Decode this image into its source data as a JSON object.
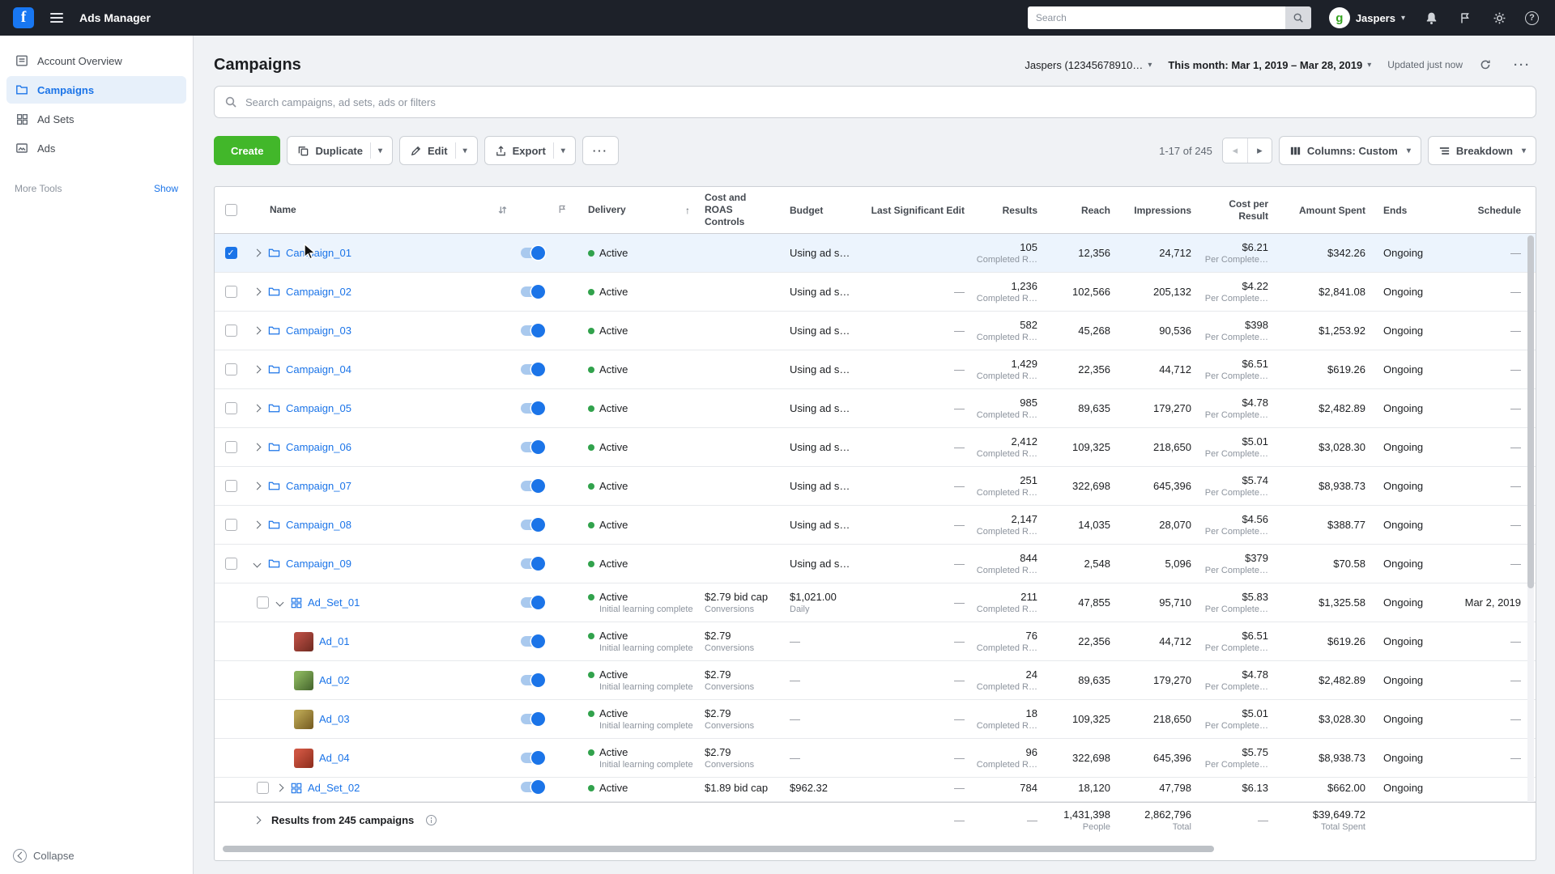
{
  "colors": {
    "accent_blue": "#1b74e8",
    "create_green": "#42b72a",
    "active_green": "#31a24c",
    "selected_row": "#ecf4fd"
  },
  "icons": {
    "caret": "▾",
    "sort_asc": "↑",
    "prev": "◂",
    "next": "▸",
    "more": "···",
    "check": "✓",
    "help": "?"
  },
  "topbar": {
    "logo_glyph": "f",
    "app_title": "Ads Manager",
    "search_placeholder": "Search",
    "avatar_glyph": "g",
    "user_name": "Jaspers"
  },
  "sidebar": {
    "items": [
      {
        "label": "Account Overview"
      },
      {
        "label": "Campaigns"
      },
      {
        "label": "Ad Sets"
      },
      {
        "label": "Ads"
      }
    ],
    "more_tools": "More Tools",
    "show": "Show",
    "collapse": "Collapse"
  },
  "header": {
    "title": "Campaigns",
    "account": "Jaspers (12345678910…",
    "date_range": "This month: Mar 1, 2019 – Mar 28, 2019",
    "updated": "Updated just now"
  },
  "filter": {
    "placeholder": "Search campaigns, ad sets, ads or filters"
  },
  "toolbar": {
    "create": "Create",
    "duplicate": "Duplicate",
    "edit": "Edit",
    "export": "Export",
    "range": "1-17 of 245",
    "columns": "Columns: Custom",
    "breakdown": "Breakdown"
  },
  "table": {
    "columns": {
      "name": "Name",
      "delivery": "Delivery",
      "cost": "Cost and ROAS Controls",
      "budget": "Budget",
      "last_edit": "Last Significant Edit",
      "results": "Results",
      "reach": "Reach",
      "impressions": "Impressions",
      "cpr": "Cost per Result",
      "spent": "Amount Spent",
      "ends": "Ends",
      "schedule": "Schedule"
    },
    "rows": [
      {
        "type": "campaign",
        "level": 0,
        "name": "Campaign_01",
        "expand": "right",
        "checked": true,
        "selected": true,
        "status": "Active",
        "status_sub": "",
        "cost": "",
        "cost_sub": "",
        "budget": "Using ad s…",
        "budget_sub": "",
        "last_edit": "",
        "results": "105",
        "results_sub": "Completed R…",
        "reach": "12,356",
        "impressions": "24,712",
        "cpr": "$6.21",
        "cpr_sub": "Per Complete…",
        "spent": "$342.26",
        "ends": "Ongoing",
        "schedule": "—"
      },
      {
        "type": "campaign",
        "level": 0,
        "name": "Campaign_02",
        "expand": "right",
        "checked": false,
        "status": "Active",
        "status_sub": "",
        "cost": "",
        "cost_sub": "",
        "budget": "Using ad s…",
        "budget_sub": "",
        "last_edit": "—",
        "results": "1,236",
        "results_sub": "Completed R…",
        "reach": "102,566",
        "impressions": "205,132",
        "cpr": "$4.22",
        "cpr_sub": "Per Complete…",
        "spent": "$2,841.08",
        "ends": "Ongoing",
        "schedule": "—"
      },
      {
        "type": "campaign",
        "level": 0,
        "name": "Campaign_03",
        "expand": "right",
        "checked": false,
        "status": "Active",
        "status_sub": "",
        "cost": "",
        "cost_sub": "",
        "budget": "Using ad s…",
        "budget_sub": "",
        "last_edit": "—",
        "results": "582",
        "results_sub": "Completed R…",
        "reach": "45,268",
        "impressions": "90,536",
        "cpr": "$398",
        "cpr_sub": "Per Complete…",
        "spent": "$1,253.92",
        "ends": "Ongoing",
        "schedule": "—"
      },
      {
        "type": "campaign",
        "level": 0,
        "name": "Campaign_04",
        "expand": "right",
        "checked": false,
        "status": "Active",
        "status_sub": "",
        "cost": "",
        "cost_sub": "",
        "budget": "Using ad s…",
        "budget_sub": "",
        "last_edit": "—",
        "results": "1,429",
        "results_sub": "Completed R…",
        "reach": "22,356",
        "impressions": "44,712",
        "cpr": "$6.51",
        "cpr_sub": "Per Complete…",
        "spent": "$619.26",
        "ends": "Ongoing",
        "schedule": "—"
      },
      {
        "type": "campaign",
        "level": 0,
        "name": "Campaign_05",
        "expand": "right",
        "checked": false,
        "status": "Active",
        "status_sub": "",
        "cost": "",
        "cost_sub": "",
        "budget": "Using ad s…",
        "budget_sub": "",
        "last_edit": "—",
        "results": "985",
        "results_sub": "Completed R…",
        "reach": "89,635",
        "impressions": "179,270",
        "cpr": "$4.78",
        "cpr_sub": "Per Complete…",
        "spent": "$2,482.89",
        "ends": "Ongoing",
        "schedule": "—"
      },
      {
        "type": "campaign",
        "level": 0,
        "name": "Campaign_06",
        "expand": "right",
        "checked": false,
        "status": "Active",
        "status_sub": "",
        "cost": "",
        "cost_sub": "",
        "budget": "Using ad s…",
        "budget_sub": "",
        "last_edit": "—",
        "results": "2,412",
        "results_sub": "Completed R…",
        "reach": "109,325",
        "impressions": "218,650",
        "cpr": "$5.01",
        "cpr_sub": "Per Complete…",
        "spent": "$3,028.30",
        "ends": "Ongoing",
        "schedule": "—"
      },
      {
        "type": "campaign",
        "level": 0,
        "name": "Campaign_07",
        "expand": "right",
        "checked": false,
        "status": "Active",
        "status_sub": "",
        "cost": "",
        "cost_sub": "",
        "budget": "Using ad s…",
        "budget_sub": "",
        "last_edit": "—",
        "results": "251",
        "results_sub": "Completed R…",
        "reach": "322,698",
        "impressions": "645,396",
        "cpr": "$5.74",
        "cpr_sub": "Per Complete…",
        "spent": "$8,938.73",
        "ends": "Ongoing",
        "schedule": "—"
      },
      {
        "type": "campaign",
        "level": 0,
        "name": "Campaign_08",
        "expand": "right",
        "checked": false,
        "status": "Active",
        "status_sub": "",
        "cost": "",
        "cost_sub": "",
        "budget": "Using ad s…",
        "budget_sub": "",
        "last_edit": "—",
        "results": "2,147",
        "results_sub": "Completed R…",
        "reach": "14,035",
        "impressions": "28,070",
        "cpr": "$4.56",
        "cpr_sub": "Per Complete…",
        "spent": "$388.77",
        "ends": "Ongoing",
        "schedule": "—"
      },
      {
        "type": "campaign",
        "level": 0,
        "name": "Campaign_09",
        "expand": "down",
        "checked": false,
        "status": "Active",
        "status_sub": "",
        "cost": "",
        "cost_sub": "",
        "budget": "Using ad s…",
        "budget_sub": "",
        "last_edit": "—",
        "results": "844",
        "results_sub": "Completed R…",
        "reach": "2,548",
        "impressions": "5,096",
        "cpr": "$379",
        "cpr_sub": "Per Complete…",
        "spent": "$70.58",
        "ends": "Ongoing",
        "schedule": "—"
      },
      {
        "type": "adset",
        "level": 1,
        "name": "Ad_Set_01",
        "expand": "down",
        "checked": false,
        "status": "Active",
        "status_sub": "Initial learning complete",
        "cost": "$2.79 bid cap",
        "cost_sub": "Conversions",
        "budget": "$1,021.00",
        "budget_sub": "Daily",
        "last_edit": "—",
        "results": "211",
        "results_sub": "Completed R…",
        "reach": "47,855",
        "impressions": "95,710",
        "cpr": "$5.83",
        "cpr_sub": "Per Complete…",
        "spent": "$1,325.58",
        "ends": "Ongoing",
        "schedule": "Mar 2, 2019"
      },
      {
        "type": "ad",
        "level": 2,
        "name": "Ad_01",
        "thumb": [
          "#b44b41",
          "#6e2a20"
        ],
        "checked": false,
        "status": "Active",
        "status_sub": "Initial learning complete",
        "cost": "$2.79",
        "cost_sub": "Conversions",
        "budget": "—",
        "budget_sub": "",
        "last_edit": "—",
        "results": "76",
        "results_sub": "Completed R…",
        "reach": "22,356",
        "impressions": "44,712",
        "cpr": "$6.51",
        "cpr_sub": "Per Complete…",
        "spent": "$619.26",
        "ends": "Ongoing",
        "schedule": "—"
      },
      {
        "type": "ad",
        "level": 2,
        "name": "Ad_02",
        "thumb": [
          "#86b05a",
          "#43632c"
        ],
        "checked": false,
        "status": "Active",
        "status_sub": "Initial learning complete",
        "cost": "$2.79",
        "cost_sub": "Conversions",
        "budget": "—",
        "budget_sub": "",
        "last_edit": "—",
        "results": "24",
        "results_sub": "Completed R…",
        "reach": "89,635",
        "impressions": "179,270",
        "cpr": "$4.78",
        "cpr_sub": "Per Complete…",
        "spent": "$2,482.89",
        "ends": "Ongoing",
        "schedule": "—"
      },
      {
        "type": "ad",
        "level": 2,
        "name": "Ad_03",
        "thumb": [
          "#b5a04f",
          "#73591f"
        ],
        "checked": false,
        "status": "Active",
        "status_sub": "Initial learning complete",
        "cost": "$2.79",
        "cost_sub": "Conversions",
        "budget": "—",
        "budget_sub": "",
        "last_edit": "—",
        "results": "18",
        "results_sub": "Completed R…",
        "reach": "109,325",
        "impressions": "218,650",
        "cpr": "$5.01",
        "cpr_sub": "Per Complete…",
        "spent": "$3,028.30",
        "ends": "Ongoing",
        "schedule": "—"
      },
      {
        "type": "ad",
        "level": 2,
        "name": "Ad_04",
        "thumb": [
          "#cc5340",
          "#8c2d1c"
        ],
        "checked": false,
        "status": "Active",
        "status_sub": "Initial learning complete",
        "cost": "$2.79",
        "cost_sub": "Conversions",
        "budget": "—",
        "budget_sub": "",
        "last_edit": "—",
        "results": "96",
        "results_sub": "Completed R…",
        "reach": "322,698",
        "impressions": "645,396",
        "cpr": "$5.75",
        "cpr_sub": "Per Complete…",
        "spent": "$8,938.73",
        "ends": "Ongoing",
        "schedule": "—"
      },
      {
        "type": "adset",
        "level": 1,
        "name": "Ad_Set_02",
        "expand": "right",
        "checked": false,
        "partial": true,
        "status": "Active",
        "status_sub": "",
        "cost": "$1.89 bid cap",
        "cost_sub": "",
        "budget": "$962.32",
        "budget_sub": "",
        "last_edit": "—",
        "results": "784",
        "results_sub": "",
        "reach": "18,120",
        "impressions": "47,798",
        "cpr": "$6.13",
        "cpr_sub": "",
        "spent": "$662.00",
        "ends": "Ongoing",
        "schedule": ""
      }
    ],
    "footer": {
      "label": "Results from 245 campaigns",
      "last_edit": "—",
      "results": "—",
      "reach": "1,431,398",
      "reach_sub": "People",
      "impressions": "2,862,796",
      "impressions_sub": "Total",
      "cpr": "—",
      "spent": "$39,649.72",
      "spent_sub": "Total Spent"
    }
  }
}
